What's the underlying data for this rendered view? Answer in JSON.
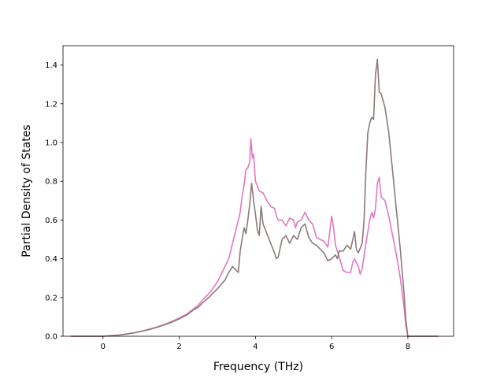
{
  "chart_data": {
    "type": "line",
    "xlabel": "Frequency (THz)",
    "ylabel": "Partial Density of States",
    "xlim": [
      -1.05,
      9.2
    ],
    "ylim": [
      0.0,
      1.5
    ],
    "xticks": [
      "0",
      "2",
      "4",
      "6",
      "8"
    ],
    "yticks": [
      "0.0",
      "0.2",
      "0.4",
      "0.6",
      "0.8",
      "1.0",
      "1.2",
      "1.4"
    ],
    "xtick_values": [
      0,
      2,
      4,
      6,
      8
    ],
    "ytick_values": [
      0.0,
      0.2,
      0.4,
      0.6,
      0.8,
      1.0,
      1.2,
      1.4
    ],
    "grid": false,
    "legend": "none",
    "series": [
      {
        "color": "#e377c2",
        "points": [
          [
            -0.85,
            0
          ],
          [
            -0.5,
            0
          ],
          [
            0,
            0
          ],
          [
            0.2,
            0.003
          ],
          [
            0.4,
            0.006
          ],
          [
            0.6,
            0.011
          ],
          [
            0.8,
            0.018
          ],
          [
            1.0,
            0.026
          ],
          [
            1.2,
            0.036
          ],
          [
            1.4,
            0.047
          ],
          [
            1.6,
            0.06
          ],
          [
            1.8,
            0.076
          ],
          [
            2.0,
            0.094
          ],
          [
            2.2,
            0.115
          ],
          [
            2.4,
            0.145
          ],
          [
            2.5,
            0.16
          ],
          [
            2.6,
            0.185
          ],
          [
            2.8,
            0.225
          ],
          [
            3.0,
            0.28
          ],
          [
            3.2,
            0.36
          ],
          [
            3.3,
            0.4
          ],
          [
            3.4,
            0.48
          ],
          [
            3.5,
            0.56
          ],
          [
            3.55,
            0.6
          ],
          [
            3.6,
            0.64
          ],
          [
            3.65,
            0.72
          ],
          [
            3.7,
            0.78
          ],
          [
            3.75,
            0.86
          ],
          [
            3.8,
            0.87
          ],
          [
            3.85,
            0.9
          ],
          [
            3.88,
            1.02
          ],
          [
            3.92,
            0.92
          ],
          [
            3.95,
            0.94
          ],
          [
            4.0,
            0.8
          ],
          [
            4.1,
            0.75
          ],
          [
            4.2,
            0.74
          ],
          [
            4.3,
            0.7
          ],
          [
            4.4,
            0.67
          ],
          [
            4.5,
            0.66
          ],
          [
            4.55,
            0.62
          ],
          [
            4.6,
            0.6
          ],
          [
            4.7,
            0.6
          ],
          [
            4.8,
            0.57
          ],
          [
            4.9,
            0.61
          ],
          [
            5.0,
            0.6
          ],
          [
            5.05,
            0.56
          ],
          [
            5.1,
            0.59
          ],
          [
            5.2,
            0.6
          ],
          [
            5.3,
            0.64
          ],
          [
            5.4,
            0.6
          ],
          [
            5.5,
            0.58
          ],
          [
            5.6,
            0.51
          ],
          [
            5.7,
            0.5
          ],
          [
            5.8,
            0.49
          ],
          [
            5.9,
            0.46
          ],
          [
            6.0,
            0.62
          ],
          [
            6.05,
            0.56
          ],
          [
            6.1,
            0.47
          ],
          [
            6.2,
            0.41
          ],
          [
            6.3,
            0.34
          ],
          [
            6.4,
            0.33
          ],
          [
            6.5,
            0.33
          ],
          [
            6.55,
            0.38
          ],
          [
            6.6,
            0.4
          ],
          [
            6.7,
            0.36
          ],
          [
            6.75,
            0.32
          ],
          [
            6.8,
            0.35
          ],
          [
            6.9,
            0.48
          ],
          [
            7.0,
            0.6
          ],
          [
            7.05,
            0.64
          ],
          [
            7.1,
            0.61
          ],
          [
            7.15,
            0.66
          ],
          [
            7.2,
            0.79
          ],
          [
            7.25,
            0.82
          ],
          [
            7.3,
            0.72
          ],
          [
            7.4,
            0.7
          ],
          [
            7.5,
            0.62
          ],
          [
            7.6,
            0.52
          ],
          [
            7.7,
            0.42
          ],
          [
            7.8,
            0.3
          ],
          [
            7.9,
            0.15
          ],
          [
            7.95,
            0.05
          ],
          [
            8.0,
            0.0
          ],
          [
            8.3,
            0
          ],
          [
            8.8,
            0
          ]
        ]
      },
      {
        "color": "#8c7a78",
        "points": [
          [
            -0.85,
            0
          ],
          [
            -0.5,
            0
          ],
          [
            0,
            0
          ],
          [
            0.2,
            0.003
          ],
          [
            0.4,
            0.006
          ],
          [
            0.6,
            0.011
          ],
          [
            0.8,
            0.017
          ],
          [
            1.0,
            0.025
          ],
          [
            1.2,
            0.034
          ],
          [
            1.4,
            0.045
          ],
          [
            1.6,
            0.058
          ],
          [
            1.8,
            0.072
          ],
          [
            2.0,
            0.09
          ],
          [
            2.2,
            0.11
          ],
          [
            2.4,
            0.14
          ],
          [
            2.5,
            0.15
          ],
          [
            2.6,
            0.17
          ],
          [
            2.8,
            0.205
          ],
          [
            3.0,
            0.245
          ],
          [
            3.2,
            0.29
          ],
          [
            3.3,
            0.33
          ],
          [
            3.4,
            0.36
          ],
          [
            3.5,
            0.34
          ],
          [
            3.55,
            0.33
          ],
          [
            3.6,
            0.44
          ],
          [
            3.65,
            0.5
          ],
          [
            3.7,
            0.56
          ],
          [
            3.75,
            0.53
          ],
          [
            3.8,
            0.6
          ],
          [
            3.85,
            0.68
          ],
          [
            3.9,
            0.79
          ],
          [
            3.95,
            0.7
          ],
          [
            4.0,
            0.63
          ],
          [
            4.05,
            0.55
          ],
          [
            4.1,
            0.52
          ],
          [
            4.15,
            0.67
          ],
          [
            4.2,
            0.58
          ],
          [
            4.3,
            0.53
          ],
          [
            4.4,
            0.48
          ],
          [
            4.5,
            0.43
          ],
          [
            4.55,
            0.4
          ],
          [
            4.6,
            0.41
          ],
          [
            4.7,
            0.5
          ],
          [
            4.8,
            0.52
          ],
          [
            4.9,
            0.48
          ],
          [
            5.0,
            0.52
          ],
          [
            5.1,
            0.5
          ],
          [
            5.2,
            0.56
          ],
          [
            5.3,
            0.58
          ],
          [
            5.4,
            0.51
          ],
          [
            5.5,
            0.48
          ],
          [
            5.6,
            0.47
          ],
          [
            5.7,
            0.45
          ],
          [
            5.8,
            0.43
          ],
          [
            5.9,
            0.39
          ],
          [
            6.0,
            0.4
          ],
          [
            6.1,
            0.42
          ],
          [
            6.15,
            0.4
          ],
          [
            6.2,
            0.44
          ],
          [
            6.3,
            0.44
          ],
          [
            6.4,
            0.47
          ],
          [
            6.5,
            0.45
          ],
          [
            6.6,
            0.54
          ],
          [
            6.65,
            0.45
          ],
          [
            6.7,
            0.43
          ],
          [
            6.8,
            0.48
          ],
          [
            6.85,
            0.6
          ],
          [
            6.9,
            0.86
          ],
          [
            6.95,
            1.05
          ],
          [
            7.0,
            1.1
          ],
          [
            7.05,
            1.13
          ],
          [
            7.1,
            1.12
          ],
          [
            7.15,
            1.35
          ],
          [
            7.2,
            1.43
          ],
          [
            7.25,
            1.26
          ],
          [
            7.3,
            1.25
          ],
          [
            7.4,
            1.18
          ],
          [
            7.5,
            1.05
          ],
          [
            7.6,
            0.85
          ],
          [
            7.7,
            0.65
          ],
          [
            7.8,
            0.45
          ],
          [
            7.9,
            0.22
          ],
          [
            7.95,
            0.08
          ],
          [
            8.0,
            0.0
          ],
          [
            8.3,
            0
          ],
          [
            8.8,
            0
          ]
        ]
      }
    ]
  }
}
